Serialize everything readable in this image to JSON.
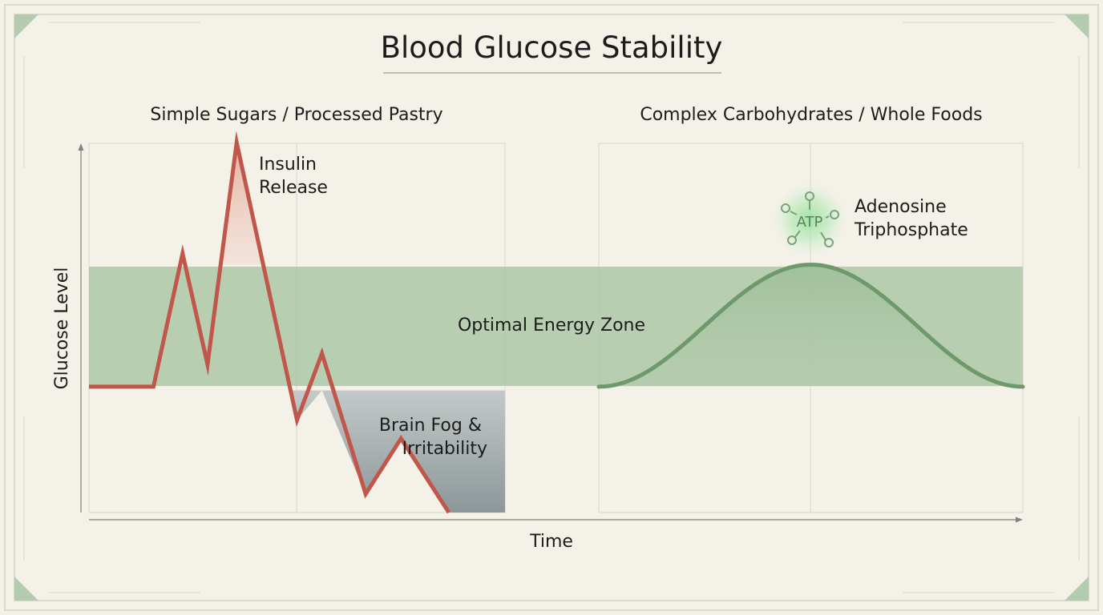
{
  "title": "Blood Glucose Stability",
  "ylabel": "Glucose Level",
  "xlabel": "Time",
  "zone_label": "Optimal Energy Zone",
  "colors": {
    "background": "#f4f1e8",
    "frame": "#c9ccc2",
    "corner": "#b5cbaf",
    "zone": "#a9c6a4",
    "simple_line": "#c0574a",
    "complex_line": "#6e9a6b",
    "fog": "#8f9ba0",
    "glow": "#8fd694",
    "text": "#1c1c1c"
  },
  "chart_data": [
    {
      "type": "line",
      "title": "Simple Sugars / Processed Pastry",
      "xlabel": "Time",
      "ylabel": "Glucose Level",
      "grid": true,
      "zone": [
        0.33,
        0.67
      ],
      "x": [
        0,
        0.155,
        0.225,
        0.285,
        0.355,
        0.5,
        0.56,
        0.665,
        0.75,
        0.865
      ],
      "y": [
        0.34,
        0.34,
        0.7,
        0.4,
        1.0,
        0.25,
        0.43,
        0.05,
        0.2,
        0.0
      ],
      "annotations": [
        {
          "text": "Insulin Release",
          "lines": [
            "Insulin",
            "Release"
          ]
        },
        {
          "text": "Brain Fog & Irritability",
          "lines": [
            "Brain Fog &",
            "Irritability"
          ]
        }
      ]
    },
    {
      "type": "area",
      "title": "Complex Carbohydrates / Whole Foods",
      "xlabel": "Time",
      "ylabel": "Glucose Level",
      "grid": true,
      "zone": [
        0.33,
        0.67
      ],
      "shape": "smooth single peak at top of optimal zone",
      "x": [
        0,
        0.25,
        0.5,
        0.75,
        1
      ],
      "y": [
        0.34,
        0.53,
        0.67,
        0.53,
        0.34
      ],
      "annotations": [
        {
          "text": "ATP",
          "lines": [
            "ATP"
          ]
        },
        {
          "text": "Adenosine Triphosphate",
          "lines": [
            "Adenosine",
            "Triphosphate"
          ]
        }
      ]
    }
  ]
}
